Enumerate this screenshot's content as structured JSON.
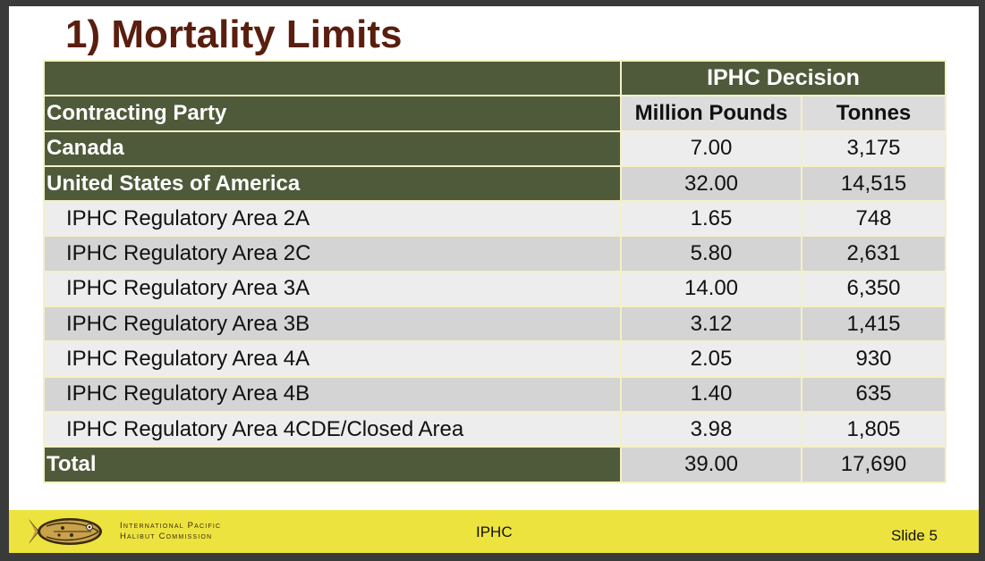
{
  "slide": {
    "title": "1) Mortality Limits"
  },
  "table": {
    "group_header": "IPHC Decision",
    "columns": [
      "Contracting Party",
      "Million Pounds",
      "Tonnes"
    ],
    "rows": [
      {
        "party": "Canada",
        "pounds": "7.00",
        "tonnes": "3,175"
      },
      {
        "party": "United States of America",
        "pounds": "32.00",
        "tonnes": "14,515"
      },
      {
        "party": "IPHC Regulatory Area 2A",
        "pounds": "1.65",
        "tonnes": "748"
      },
      {
        "party": "IPHC Regulatory Area 2C",
        "pounds": "5.80",
        "tonnes": "2,631"
      },
      {
        "party": "IPHC Regulatory Area 3A",
        "pounds": "14.00",
        "tonnes": "6,350"
      },
      {
        "party": "IPHC Regulatory Area 3B",
        "pounds": "3.12",
        "tonnes": "1,415"
      },
      {
        "party": "IPHC Regulatory Area 4A",
        "pounds": "2.05",
        "tonnes": "930"
      },
      {
        "party": "IPHC Regulatory Area 4B",
        "pounds": "1.40",
        "tonnes": "635"
      },
      {
        "party": "IPHC Regulatory Area 4CDE/Closed Area",
        "pounds": "3.98",
        "tonnes": "1,805"
      },
      {
        "party": "Total",
        "pounds": "39.00",
        "tonnes": "17,690"
      }
    ]
  },
  "footer": {
    "org_line1": "International Pacific",
    "org_line2": "Halibut Commission",
    "center": "IPHC",
    "slide_number": "Slide 5",
    "logo_icon": "halibut-fish-icon"
  },
  "colors": {
    "title": "#5a1e0e",
    "header_green": "#4f5a3a",
    "footer_yellow": "#ede33f",
    "border": "#f4f1c4"
  }
}
